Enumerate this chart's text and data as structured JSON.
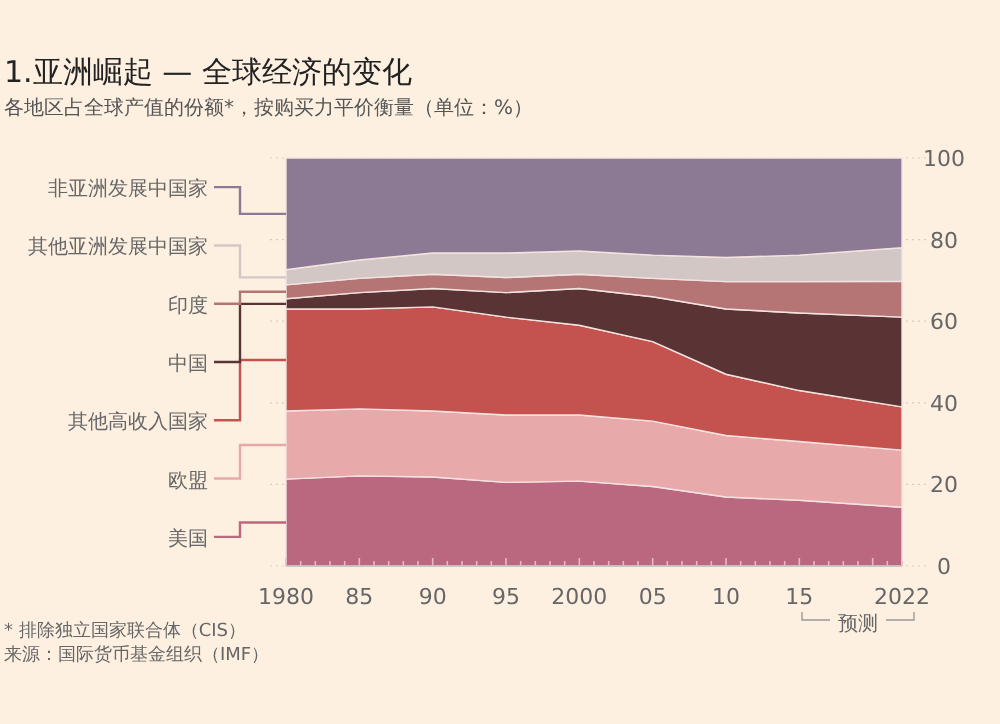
{
  "chart_data": {
    "type": "area",
    "stacked": true,
    "title": "1.亚洲崛起 — 全球经济的变化",
    "subtitle": "各地区占全球产值的份额*，按购买力平价衡量（单位：%）",
    "x": [
      1980,
      1985,
      1990,
      1995,
      2000,
      2005,
      2010,
      2015,
      2022
    ],
    "series": [
      {
        "name": "美国",
        "color": "#b9687f",
        "values": [
          21.3,
          22.1,
          21.8,
          20.5,
          20.8,
          19.5,
          16.9,
          16.1,
          14.4
        ]
      },
      {
        "name": "欧盟",
        "color": "#e8a9ab",
        "values": [
          16.7,
          16.4,
          16.2,
          16.5,
          16.2,
          16.0,
          15.1,
          14.4,
          14.0
        ]
      },
      {
        "name": "其他高收入国家",
        "color": "#c4534f",
        "values": [
          25,
          24.5,
          25.5,
          24,
          22,
          19.5,
          15,
          12.5,
          10.6
        ]
      },
      {
        "name": "中国",
        "color": "#5a3434",
        "values": [
          2.5,
          4,
          4.5,
          6,
          9,
          11,
          16,
          19,
          22
        ]
      },
      {
        "name": "印度",
        "color": "#b57575",
        "values": [
          3.4,
          3.5,
          3.5,
          3.7,
          3.5,
          4.5,
          6.7,
          7.7,
          8.8
        ]
      },
      {
        "name": "其他亚洲发展中国家",
        "color": "#d3c7c6",
        "values": [
          3.7,
          4.5,
          5.2,
          6,
          5.7,
          5.7,
          5.9,
          6.5,
          8.2
        ]
      },
      {
        "name": "非亚洲发展中国家",
        "color": "#8c7a94",
        "values": [
          27.4,
          25,
          23.3,
          23.3,
          22.8,
          23.8,
          24.4,
          23.8,
          22
        ]
      }
    ],
    "xlim": [
      1980,
      2022
    ],
    "xticks": [
      1980,
      {
        "value": 1985,
        "label": "85"
      },
      {
        "value": 1990,
        "label": "90"
      },
      {
        "value": 1995,
        "label": "95"
      },
      2000,
      {
        "value": 2005,
        "label": "05"
      },
      {
        "value": 2010,
        "label": "10"
      },
      {
        "value": 2015,
        "label": "15"
      },
      2022
    ],
    "ylim": [
      0,
      100
    ],
    "yticks": [
      0,
      20,
      40,
      60,
      80,
      100
    ],
    "grid": "y",
    "legend": "left",
    "annotations": [
      "预测",
      "* 排除独立国家联合体（CIS）",
      "来源：国际货币基金组织（IMF）"
    ]
  }
}
